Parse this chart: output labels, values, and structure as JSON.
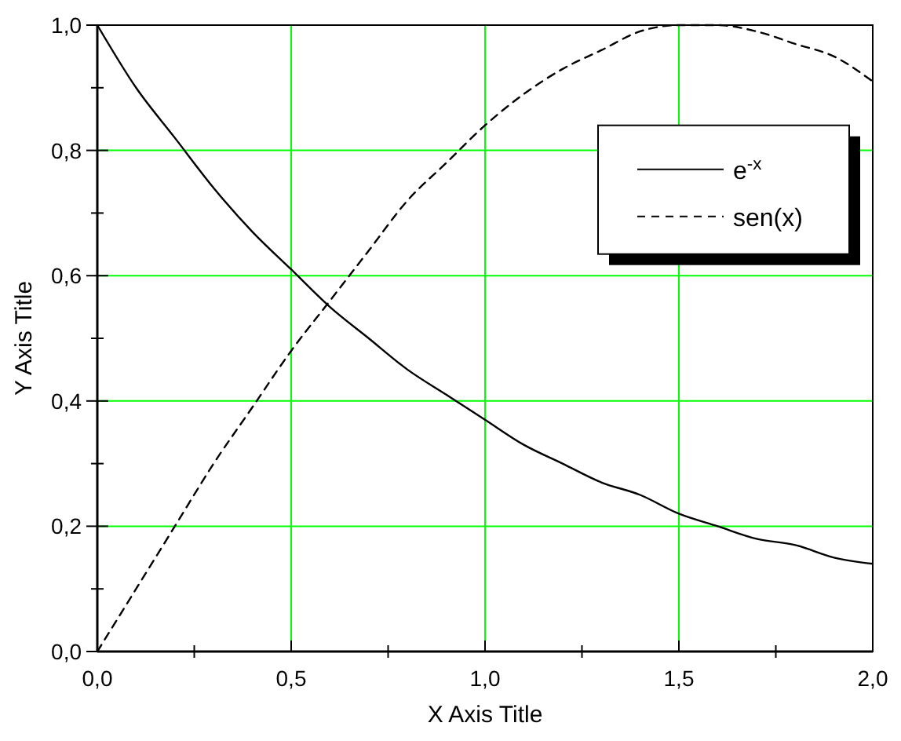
{
  "chart_data": {
    "type": "line",
    "xlabel": "X Axis Title",
    "ylabel": "Y Axis Title",
    "x": [
      0,
      0.1,
      0.2,
      0.3,
      0.4,
      0.5,
      0.6,
      0.7,
      0.8,
      0.9,
      1.0,
      1.1,
      1.2,
      1.3,
      1.4,
      1.5,
      1.6,
      1.7,
      1.8,
      1.9,
      2.0
    ],
    "series": [
      {
        "name": "e$^{-x}$",
        "color": "#000000",
        "line_style": "solid",
        "values": [
          1,
          0.9,
          0.82,
          0.74,
          0.67,
          0.61,
          0.55,
          0.5,
          0.45,
          0.41,
          0.37,
          0.33,
          0.3,
          0.27,
          0.25,
          0.22,
          0.2,
          0.18,
          0.17,
          0.15,
          0.14
        ]
      },
      {
        "name": "sen(x)",
        "color": "#000000",
        "line_style": "dashed",
        "values": [
          0,
          0.1,
          0.2,
          0.3,
          0.39,
          0.48,
          0.56,
          0.64,
          0.72,
          0.78,
          0.84,
          0.89,
          0.93,
          0.96,
          0.99,
          1.0,
          1.0,
          0.99,
          0.97,
          0.95,
          0.91
        ]
      }
    ],
    "xlim": [
      0,
      2
    ],
    "ylim": [
      0,
      1
    ],
    "xticks": [
      {
        "value": 0,
        "label": "0,0"
      },
      {
        "value": 0.25,
        "label": null
      },
      {
        "value": 0.5,
        "label": "0,5"
      },
      {
        "value": 0.75,
        "label": null
      },
      {
        "value": 1,
        "label": "1,0"
      },
      {
        "value": 1.25,
        "label": null
      },
      {
        "value": 1.5,
        "label": "1,5"
      },
      {
        "value": 1.75,
        "label": null
      },
      {
        "value": 2,
        "label": "2,0"
      }
    ],
    "yticks": [
      {
        "value": 0,
        "label": "0,0"
      },
      {
        "value": 0.1,
        "label": null
      },
      {
        "value": 0.2,
        "label": "0,2"
      },
      {
        "value": 0.3,
        "label": null
      },
      {
        "value": 0.4,
        "label": "0,4"
      },
      {
        "value": 0.5,
        "label": null
      },
      {
        "value": 0.6,
        "label": "0,6"
      },
      {
        "value": 0.7,
        "label": null
      },
      {
        "value": 0.8,
        "label": "0,8"
      },
      {
        "value": 0.9,
        "label": null
      },
      {
        "value": 1,
        "label": "1,0"
      }
    ],
    "grid": true,
    "legend": "right",
    "marker": "none"
  }
}
